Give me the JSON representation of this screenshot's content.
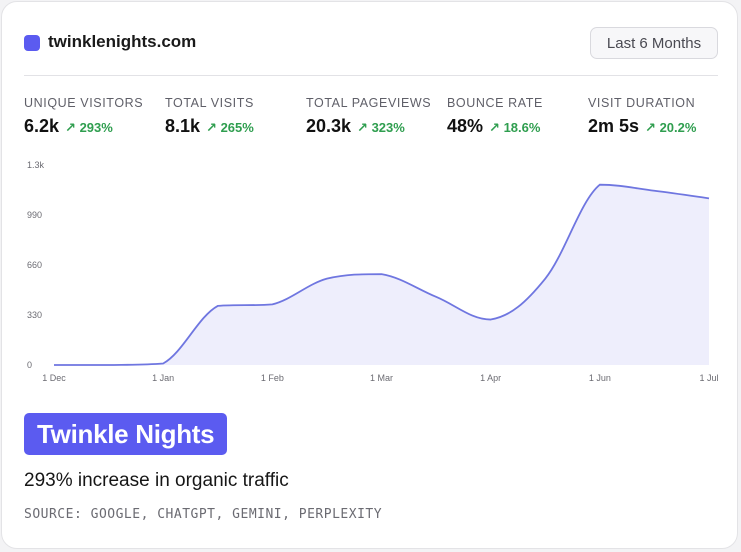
{
  "site": {
    "name": "twinklenights.com"
  },
  "period_button": {
    "label": "Last 6 Months"
  },
  "stats": [
    {
      "label": "UNIQUE VISITORS",
      "value": "6.2k",
      "change": "293%"
    },
    {
      "label": "TOTAL VISITS",
      "value": "8.1k",
      "change": "265%"
    },
    {
      "label": "TOTAL PAGEVIEWS",
      "value": "20.3k",
      "change": "323%"
    },
    {
      "label": "BOUNCE RATE",
      "value": "48%",
      "change": "18.6%"
    },
    {
      "label": "VISIT DURATION",
      "value": "2m 5s",
      "change": "20.2%"
    }
  ],
  "change_arrow": "↗",
  "colors": {
    "accent": "#5b5bf0",
    "line": "#6f76e0",
    "fill": "#eeeefc",
    "positive": "#2f9e4f"
  },
  "chart_data": {
    "type": "area",
    "y_ticks": [
      "0",
      "330",
      "660",
      "990",
      "1.3k"
    ],
    "y_tick_values": [
      0,
      330,
      660,
      990,
      1320
    ],
    "x_ticks": [
      "1 Dec",
      "1 Jan",
      "1 Feb",
      "1 Mar",
      "1 Apr",
      "1 Jun",
      "1 Jul"
    ],
    "x_tick_pos": [
      0,
      1,
      2,
      3,
      4,
      5,
      6
    ],
    "ylim": [
      0,
      1320
    ],
    "grid": false,
    "x": [
      0,
      0.5,
      1,
      1.5,
      2,
      2.5,
      3,
      3.5,
      4,
      4.5,
      5,
      5.5,
      6
    ],
    "y": [
      0,
      0,
      10,
      390,
      400,
      570,
      600,
      450,
      300,
      570,
      1190,
      1150,
      1100
    ]
  },
  "badge": {
    "text": "Twinkle Nights"
  },
  "headline": {
    "text": "293% increase in organic traffic"
  },
  "source": {
    "text": "SOURCE: GOOGLE, CHATGPT, GEMINI, PERPLEXITY"
  }
}
